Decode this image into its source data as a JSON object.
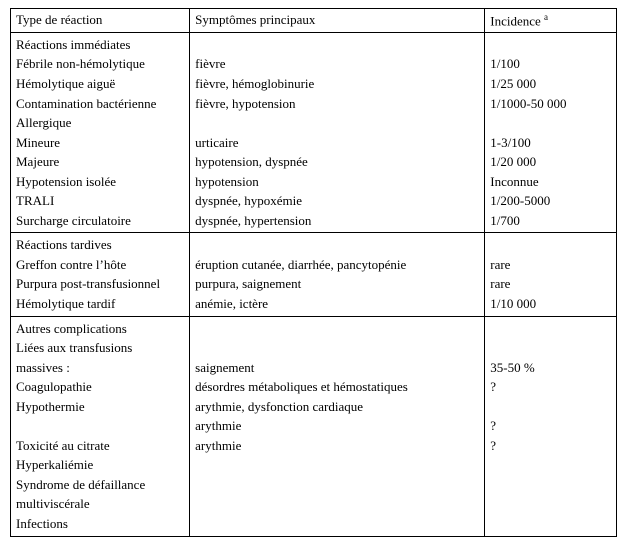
{
  "header": {
    "col1": "Type de réaction",
    "col2": "Symptômes principaux",
    "col3_before": "Incidence ",
    "col3_sup": "a"
  },
  "section1": {
    "title": "Réactions immédiates",
    "rows": [
      {
        "type": "Fébrile non-hémolytique",
        "sym": "fièvre",
        "inc": "1/100"
      },
      {
        "type": "Hémolytique aiguë",
        "sym": "fièvre, hémoglobinurie",
        "inc": "1/25 000"
      },
      {
        "type": "Contamination bactérienne",
        "sym": "fièvre, hypotension",
        "inc": "1/1000-50 000"
      },
      {
        "type": "Allergique",
        "sym": "",
        "inc": ""
      },
      {
        "type": "Mineure",
        "sym": "urticaire",
        "inc": "1-3/100"
      },
      {
        "type": "Majeure",
        "sym": "hypotension, dyspnée",
        "inc": "1/20 000"
      },
      {
        "type": "Hypotension isolée",
        "sym": "hypotension",
        "inc": "Inconnue"
      },
      {
        "type": "TRALI",
        "sym": "dyspnée, hypoxémie",
        "inc": "1/200-5000"
      },
      {
        "type": "Surcharge circulatoire",
        "sym": "dyspnée, hypertension",
        "inc": "1/700"
      }
    ]
  },
  "section2": {
    "title": "Réactions tardives",
    "rows": [
      {
        "type": "Greffon contre l’hôte",
        "sym": "éruption cutanée, diarrhée, pancytopénie",
        "inc": "rare"
      },
      {
        "type": "Purpura post-transfusionnel",
        "sym": "purpura, saignement",
        "inc": "rare"
      },
      {
        "type": "Hémolytique tardif",
        "sym": "anémie, ictère",
        "inc": "1/10 000"
      }
    ]
  },
  "section3": {
    "title": "Autres complications",
    "type_lines": [
      "Liées aux transfusions",
      "massives :",
      "Coagulopathie",
      "Hypothermie",
      "",
      "Toxicité au citrate",
      "Hyperkaliémie",
      "Syndrome de défaillance",
      "multiviscérale",
      "Infections"
    ],
    "sym_lines": [
      "",
      "saignement",
      "désordres métaboliques et hémostatiques",
      "arythmie, dysfonction cardiaque",
      "arythmie",
      "arythmie"
    ],
    "inc_lines": [
      "",
      "35-50 %",
      "?",
      "",
      "?",
      "?"
    ]
  }
}
